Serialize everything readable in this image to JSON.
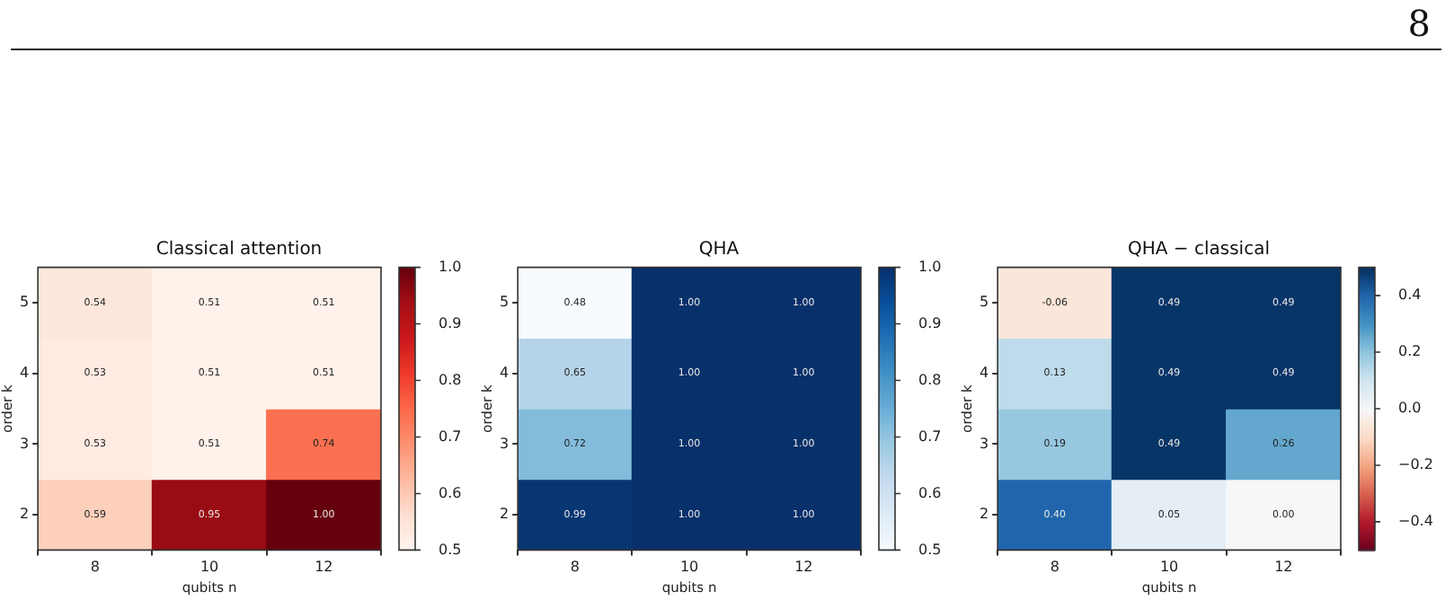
{
  "chart_data": [
    {
      "type": "heatmap",
      "title": "Classical attention",
      "xlabel": "qubits n",
      "ylabel": "order k",
      "annotations": [
        "8"
      ],
      "categories": [
        "8",
        "10",
        "12"
      ],
      "y_categories": [
        "5",
        "4",
        "3",
        "2"
      ],
      "cells": [
        [
          0.54,
          0.51,
          0.51
        ],
        [
          0.53,
          0.51,
          0.51
        ],
        [
          0.53,
          0.51,
          0.74
        ],
        [
          0.59,
          0.95,
          1.0
        ]
      ],
      "cell_labels": [
        [
          "0.54",
          "0.51",
          "0.51"
        ],
        [
          "0.53",
          "0.51",
          "0.51"
        ],
        [
          "0.53",
          "0.51",
          "0.74"
        ],
        [
          "0.59",
          "0.95",
          "1.00"
        ]
      ],
      "colors": [
        "#fff5f0",
        "#fee0d2",
        "#fcbba1",
        "#fc9272",
        "#fb6a4a",
        "#ef3b2c",
        "#cb181d",
        "#a50f15",
        "#67000d"
      ],
      "clim": [
        0.5,
        1.0
      ],
      "cticks": [
        0.5,
        0.6,
        0.7,
        0.8,
        0.9,
        {
          "value": 1.0,
          "label": "1.0"
        }
      ]
    },
    {
      "type": "heatmap",
      "title": "QHA",
      "xlabel": "qubits n",
      "ylabel": "order k",
      "categories": [
        "8",
        "10",
        "12"
      ],
      "y_categories": [
        "5",
        "4",
        "3",
        "2"
      ],
      "cells": [
        [
          0.48,
          1.0,
          1.0
        ],
        [
          0.65,
          1.0,
          1.0
        ],
        [
          0.72,
          1.0,
          1.0
        ],
        [
          0.99,
          1.0,
          1.0
        ]
      ],
      "cell_labels": [
        [
          "0.48",
          "1.00",
          "1.00"
        ],
        [
          "0.65",
          "1.00",
          "1.00"
        ],
        [
          "0.72",
          "1.00",
          "1.00"
        ],
        [
          "0.99",
          "1.00",
          "1.00"
        ]
      ],
      "colors": [
        "#f7fbff",
        "#deebf7",
        "#c6dbef",
        "#9ecae1",
        "#6baed6",
        "#4292c6",
        "#2171b5",
        "#08519c",
        "#08306b"
      ],
      "clim": [
        0.5,
        1.0
      ],
      "cticks": [
        0.5,
        0.6,
        0.7,
        0.8,
        0.9,
        {
          "value": 1.0,
          "label": "1.0"
        }
      ]
    },
    {
      "type": "heatmap",
      "title": "QHA − classical",
      "xlabel": "qubits n",
      "ylabel": "order k",
      "categories": [
        "8",
        "10",
        "12"
      ],
      "y_categories": [
        "5",
        "4",
        "3",
        "2"
      ],
      "cells": [
        [
          -0.06,
          0.49,
          0.49
        ],
        [
          0.13,
          0.49,
          0.49
        ],
        [
          0.19,
          0.49,
          0.26
        ],
        [
          0.4,
          0.05,
          0.0
        ]
      ],
      "cell_labels": [
        [
          "-0.06",
          "0.49",
          "0.49"
        ],
        [
          "0.13",
          "0.49",
          "0.49"
        ],
        [
          "0.19",
          "0.49",
          "0.26"
        ],
        [
          "0.40",
          "0.05",
          "0.00"
        ]
      ],
      "colors": [
        "#67001f",
        "#b2182b",
        "#d6604d",
        "#f4a582",
        "#fddbc7",
        "#f7f7f7",
        "#d1e5f0",
        "#92c5de",
        "#4393c3",
        "#2166ac",
        "#053061"
      ],
      "clim": [
        -0.5,
        0.5
      ],
      "cticks": [
        {
          "value": -0.4,
          "label": "−0.4"
        },
        {
          "value": -0.2,
          "label": "−0.2"
        },
        {
          "value": 0,
          "label": "0.0"
        },
        0.2,
        0.4
      ]
    }
  ]
}
